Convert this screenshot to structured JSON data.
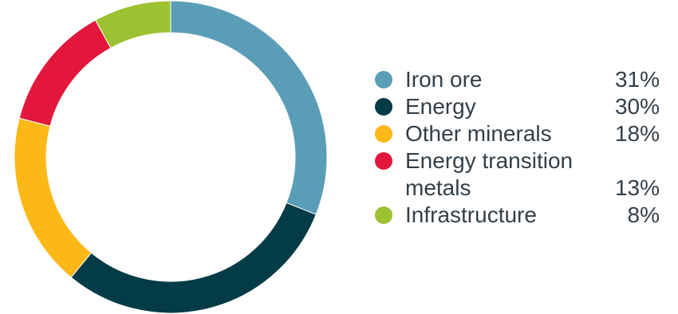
{
  "chart_data": {
    "type": "pie",
    "donut": true,
    "slices": [
      {
        "label": "Iron ore",
        "value": 31,
        "display": "31%",
        "color": "#5a9db7"
      },
      {
        "label": "Energy",
        "value": 30,
        "display": "30%",
        "color": "#033c46"
      },
      {
        "label": "Other minerals",
        "value": 18,
        "display": "18%",
        "color": "#fbb817"
      },
      {
        "label": "Energy transition metals",
        "value": 13,
        "display": "13%",
        "color": "#e3173b"
      },
      {
        "label": "Infrastructure",
        "value": 8,
        "display": "8%",
        "color": "#9dc231"
      }
    ],
    "legend_position": "right"
  },
  "legend": {
    "items": [
      {
        "label": "Iron ore",
        "value": "31%"
      },
      {
        "label": "Energy",
        "value": "30%"
      },
      {
        "label": "Other minerals",
        "value": "18%"
      },
      {
        "label": "Energy transition metals",
        "value": "13%"
      },
      {
        "label": "Infrastructure",
        "value": "8%"
      }
    ]
  }
}
